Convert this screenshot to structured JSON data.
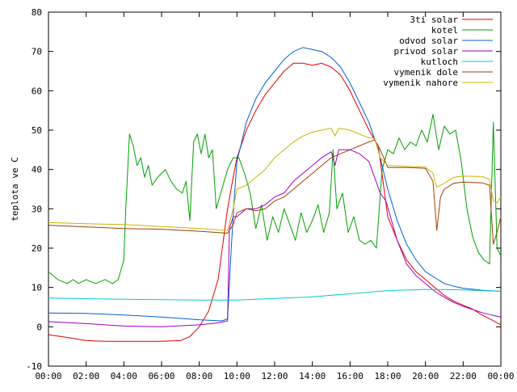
{
  "chart_data": {
    "type": "line",
    "title": "",
    "xlabel": "",
    "ylabel": "teplota ve C",
    "xlim": [
      0,
      24
    ],
    "ylim": [
      -10,
      80
    ],
    "grid": false,
    "legend_position": "top-right",
    "x_tick_labels": [
      "00:00",
      "02:00",
      "04:00",
      "06:00",
      "08:00",
      "10:00",
      "12:00",
      "14:00",
      "16:00",
      "18:00",
      "20:00",
      "22:00",
      "00:00"
    ],
    "y_tick_labels": [
      "-10",
      "0",
      "10",
      "20",
      "30",
      "40",
      "50",
      "60",
      "70",
      "80"
    ],
    "series": [
      {
        "name": "3ti solar",
        "color": "#e00000",
        "points": [
          [
            0,
            -2
          ],
          [
            1,
            -2.7
          ],
          [
            2,
            -3.5
          ],
          [
            3,
            -3.7
          ],
          [
            4,
            -3.7
          ],
          [
            5,
            -3.7
          ],
          [
            6,
            -3.7
          ],
          [
            7,
            -3.5
          ],
          [
            7.5,
            -2.5
          ],
          [
            8,
            0
          ],
          [
            8.5,
            4
          ],
          [
            9,
            12
          ],
          [
            9.5,
            30
          ],
          [
            9.8,
            38
          ],
          [
            10,
            43
          ],
          [
            10.5,
            50
          ],
          [
            11,
            55
          ],
          [
            11.5,
            59
          ],
          [
            12,
            62
          ],
          [
            12.5,
            65
          ],
          [
            13,
            67
          ],
          [
            13.5,
            67
          ],
          [
            14,
            66.5
          ],
          [
            14.5,
            67
          ],
          [
            15,
            66
          ],
          [
            15.5,
            64
          ],
          [
            16,
            60
          ],
          [
            16.5,
            55
          ],
          [
            17,
            50
          ],
          [
            17.5,
            46
          ],
          [
            18,
            28
          ],
          [
            18.5,
            22
          ],
          [
            19,
            17
          ],
          [
            19.5,
            14
          ],
          [
            20,
            12
          ],
          [
            20.5,
            10
          ],
          [
            21,
            8
          ],
          [
            21.5,
            6.5
          ],
          [
            22,
            5.5
          ],
          [
            22.5,
            4.5
          ],
          [
            23,
            3
          ],
          [
            23.5,
            1.8
          ],
          [
            24,
            0.5
          ]
        ]
      },
      {
        "name": "kotel",
        "color": "#00a000",
        "points": [
          [
            0,
            14
          ],
          [
            0.5,
            12
          ],
          [
            1,
            11
          ],
          [
            1.3,
            12
          ],
          [
            1.6,
            11
          ],
          [
            2,
            12
          ],
          [
            2.5,
            11
          ],
          [
            3,
            12
          ],
          [
            3.4,
            11
          ],
          [
            3.7,
            12
          ],
          [
            4,
            17
          ],
          [
            4.1,
            30
          ],
          [
            4.3,
            49
          ],
          [
            4.5,
            46
          ],
          [
            4.7,
            41
          ],
          [
            4.9,
            43
          ],
          [
            5.1,
            38
          ],
          [
            5.3,
            41
          ],
          [
            5.5,
            36
          ],
          [
            5.8,
            38
          ],
          [
            6.2,
            40
          ],
          [
            6.5,
            37
          ],
          [
            6.8,
            35
          ],
          [
            7.1,
            34
          ],
          [
            7.3,
            37
          ],
          [
            7.5,
            27
          ],
          [
            7.7,
            47
          ],
          [
            7.9,
            49
          ],
          [
            8.1,
            44
          ],
          [
            8.3,
            49
          ],
          [
            8.5,
            43
          ],
          [
            8.7,
            45
          ],
          [
            8.9,
            30
          ],
          [
            9.2,
            35
          ],
          [
            9.5,
            40
          ],
          [
            9.8,
            43
          ],
          [
            10.1,
            43
          ],
          [
            10.4,
            39
          ],
          [
            10.7,
            34
          ],
          [
            11,
            25
          ],
          [
            11.3,
            31
          ],
          [
            11.6,
            22
          ],
          [
            11.9,
            28
          ],
          [
            12.2,
            24
          ],
          [
            12.5,
            30
          ],
          [
            12.8,
            26
          ],
          [
            13.1,
            22
          ],
          [
            13.4,
            29
          ],
          [
            13.7,
            24
          ],
          [
            14,
            27
          ],
          [
            14.3,
            31
          ],
          [
            14.6,
            24
          ],
          [
            14.9,
            29
          ],
          [
            15.1,
            45
          ],
          [
            15.3,
            30
          ],
          [
            15.6,
            34
          ],
          [
            15.9,
            24
          ],
          [
            16.2,
            28
          ],
          [
            16.5,
            22
          ],
          [
            16.8,
            21
          ],
          [
            17.1,
            22
          ],
          [
            17.4,
            20
          ],
          [
            17.7,
            40
          ],
          [
            18,
            45
          ],
          [
            18.3,
            44
          ],
          [
            18.6,
            48
          ],
          [
            18.9,
            45
          ],
          [
            19.2,
            47
          ],
          [
            19.5,
            46
          ],
          [
            19.8,
            50
          ],
          [
            20.1,
            47
          ],
          [
            20.4,
            54
          ],
          [
            20.7,
            45
          ],
          [
            21,
            51
          ],
          [
            21.3,
            49
          ],
          [
            21.6,
            50
          ],
          [
            21.9,
            42
          ],
          [
            22.2,
            30
          ],
          [
            22.5,
            23
          ],
          [
            22.8,
            19
          ],
          [
            23.1,
            17
          ],
          [
            23.4,
            16
          ],
          [
            23.6,
            52
          ],
          [
            23.8,
            20
          ],
          [
            24,
            18
          ]
        ]
      },
      {
        "name": "odvod solar",
        "color": "#0060d0",
        "points": [
          [
            0,
            3.5
          ],
          [
            2,
            3.4
          ],
          [
            4,
            3
          ],
          [
            6,
            2.5
          ],
          [
            8,
            1.8
          ],
          [
            9.2,
            1.5
          ],
          [
            9.5,
            2
          ],
          [
            9.7,
            20
          ],
          [
            9.85,
            32
          ],
          [
            10,
            42
          ],
          [
            10.5,
            52
          ],
          [
            11,
            58
          ],
          [
            11.5,
            62
          ],
          [
            12,
            65
          ],
          [
            12.5,
            68
          ],
          [
            13,
            70
          ],
          [
            13.5,
            71
          ],
          [
            14,
            70.5
          ],
          [
            14.5,
            70
          ],
          [
            15,
            68.5
          ],
          [
            15.5,
            66
          ],
          [
            16,
            62
          ],
          [
            16.5,
            57
          ],
          [
            17,
            52
          ],
          [
            17.5,
            45
          ],
          [
            18,
            35
          ],
          [
            18.5,
            27
          ],
          [
            19,
            21
          ],
          [
            19.5,
            17
          ],
          [
            20,
            14
          ],
          [
            20.5,
            12.5
          ],
          [
            21,
            11
          ],
          [
            21.5,
            10.3
          ],
          [
            22,
            9.8
          ],
          [
            23,
            9.3
          ],
          [
            24,
            9
          ]
        ]
      },
      {
        "name": "privod solar",
        "color": "#a000c0",
        "points": [
          [
            0,
            1.3
          ],
          [
            2,
            0.8
          ],
          [
            4,
            0.2
          ],
          [
            6,
            0
          ],
          [
            8,
            0.5
          ],
          [
            9,
            1
          ],
          [
            9.5,
            1.5
          ],
          [
            9.6,
            25
          ],
          [
            9.8,
            28
          ],
          [
            10,
            28
          ],
          [
            10.5,
            30
          ],
          [
            11,
            30
          ],
          [
            11.5,
            31
          ],
          [
            12,
            33
          ],
          [
            12.5,
            34
          ],
          [
            13,
            37
          ],
          [
            13.5,
            39
          ],
          [
            14,
            41
          ],
          [
            14.5,
            43
          ],
          [
            15,
            44.5
          ],
          [
            15.2,
            41
          ],
          [
            15.4,
            45
          ],
          [
            16,
            45
          ],
          [
            16.5,
            44
          ],
          [
            17,
            42
          ],
          [
            17.3,
            38
          ],
          [
            17.6,
            34
          ],
          [
            17.9,
            32
          ],
          [
            18.2,
            27
          ],
          [
            18.5,
            22
          ],
          [
            19,
            16
          ],
          [
            19.5,
            13
          ],
          [
            20,
            11
          ],
          [
            20.5,
            9
          ],
          [
            21,
            7.5
          ],
          [
            21.5,
            6.2
          ],
          [
            22,
            5.2
          ],
          [
            22.5,
            4.4
          ],
          [
            23,
            3.6
          ],
          [
            23.5,
            3
          ],
          [
            24,
            2.5
          ]
        ]
      },
      {
        "name": "kutloch",
        "color": "#00c8c8",
        "points": [
          [
            0,
            7.3
          ],
          [
            4,
            7
          ],
          [
            8,
            6.8
          ],
          [
            10,
            6.8
          ],
          [
            12,
            7.2
          ],
          [
            14,
            7.6
          ],
          [
            16,
            8.4
          ],
          [
            18,
            9.2
          ],
          [
            20,
            9.5
          ],
          [
            22,
            9.4
          ],
          [
            24,
            9
          ]
        ]
      },
      {
        "name": "vymenik dole",
        "color": "#a04000",
        "points": [
          [
            0,
            25.8
          ],
          [
            2,
            25.4
          ],
          [
            4,
            25
          ],
          [
            6,
            24.8
          ],
          [
            8,
            24.3
          ],
          [
            9.5,
            23.8
          ],
          [
            9.8,
            26
          ],
          [
            10,
            29
          ],
          [
            10.5,
            30
          ],
          [
            11,
            29.5
          ],
          [
            11.5,
            30
          ],
          [
            12,
            32
          ],
          [
            12.5,
            33
          ],
          [
            13,
            35
          ],
          [
            13.5,
            37
          ],
          [
            14,
            39
          ],
          [
            14.5,
            41
          ],
          [
            15,
            43
          ],
          [
            15.5,
            44
          ],
          [
            16,
            45
          ],
          [
            16.5,
            46
          ],
          [
            17,
            47
          ],
          [
            17.3,
            47.5
          ],
          [
            17.6,
            45
          ],
          [
            18,
            40.5
          ],
          [
            19,
            40.5
          ],
          [
            20,
            40.3
          ],
          [
            20.4,
            37
          ],
          [
            20.6,
            24.5
          ],
          [
            20.8,
            33
          ],
          [
            21,
            35
          ],
          [
            21.5,
            36.5
          ],
          [
            22,
            36.8
          ],
          [
            23,
            36.6
          ],
          [
            23.4,
            36
          ],
          [
            23.6,
            21
          ],
          [
            23.8,
            24
          ],
          [
            24,
            28
          ]
        ]
      },
      {
        "name": "vymenik nahore",
        "color": "#c8b400",
        "points": [
          [
            0,
            26.5
          ],
          [
            2,
            26.2
          ],
          [
            4,
            26
          ],
          [
            6,
            25.5
          ],
          [
            8,
            25
          ],
          [
            9.5,
            24.5
          ],
          [
            9.8,
            30
          ],
          [
            10,
            35
          ],
          [
            10.5,
            36
          ],
          [
            11,
            38
          ],
          [
            11.5,
            40
          ],
          [
            12,
            43
          ],
          [
            12.5,
            45
          ],
          [
            13,
            47
          ],
          [
            13.5,
            48.5
          ],
          [
            14,
            49.5
          ],
          [
            14.5,
            50
          ],
          [
            15,
            50.5
          ],
          [
            15.2,
            48.5
          ],
          [
            15.4,
            50.5
          ],
          [
            16,
            50
          ],
          [
            16.5,
            49
          ],
          [
            17,
            48
          ],
          [
            17.3,
            48
          ],
          [
            17.6,
            43
          ],
          [
            18,
            41
          ],
          [
            19,
            40.8
          ],
          [
            20,
            40.6
          ],
          [
            20.4,
            39
          ],
          [
            20.6,
            35.5
          ],
          [
            21,
            36.5
          ],
          [
            21.5,
            38
          ],
          [
            22,
            38.3
          ],
          [
            23,
            38.2
          ],
          [
            23.4,
            37.5
          ],
          [
            23.6,
            32
          ],
          [
            23.8,
            31.5
          ],
          [
            24,
            33
          ]
        ]
      }
    ]
  }
}
